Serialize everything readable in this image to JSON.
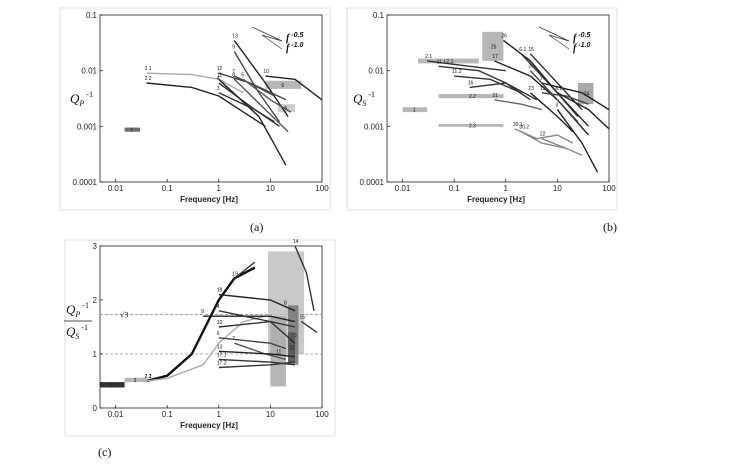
{
  "chart_data": [
    {
      "panel": "(a)",
      "type": "line",
      "xlabel": "Frequency [Hz]",
      "ylabel": "Q_P^-1",
      "ylabel_parts": {
        "main": "Q",
        "sub": "P",
        "sup": "-1"
      },
      "xscale": "log",
      "yscale": "log",
      "xlim": [
        0.005,
        100
      ],
      "ylim": [
        0.0001,
        0.1
      ],
      "x_ticks": [
        "0.01",
        "0.1",
        "1",
        "10",
        "100"
      ],
      "y_ticks": [
        "0.0001",
        "0.001",
        "0.01",
        "0.1"
      ],
      "legend": [
        {
          "label": "f",
          "exp": "-0.5"
        },
        {
          "label": "f",
          "exp": "-1.0"
        }
      ],
      "series": [
        {
          "name": "2.1",
          "color": "#aaaaaa",
          "x": [
            0.04,
            0.3,
            1,
            3
          ],
          "y": [
            0.009,
            0.0085,
            0.007,
            0.004
          ]
        },
        {
          "name": "2.2",
          "color": "#222222",
          "x": [
            0.04,
            0.3,
            1,
            3,
            8
          ],
          "y": [
            0.006,
            0.005,
            0.0035,
            0.0018,
            0.001
          ]
        },
        {
          "name": "13",
          "color": "#222222",
          "x": [
            2,
            8,
            22
          ],
          "y": [
            0.035,
            0.006,
            0.0015
          ]
        },
        {
          "name": "9",
          "color": "#444444",
          "x": [
            2,
            6,
            15
          ],
          "y": [
            0.022,
            0.004,
            0.0012
          ]
        },
        {
          "name": "12",
          "color": "#444444",
          "x": [
            1,
            4,
            12
          ],
          "y": [
            0.009,
            0.006,
            0.0035
          ]
        },
        {
          "name": "3",
          "color": "#333333",
          "x": [
            1,
            5,
            12
          ],
          "y": [
            0.004,
            0.002,
            0.0012
          ]
        },
        {
          "name": "4",
          "color": "#333333",
          "x": [
            1,
            5,
            15
          ],
          "y": [
            0.006,
            0.002,
            0.001
          ]
        },
        {
          "name": "11",
          "color": "#222222",
          "x": [
            1,
            6,
            20
          ],
          "y": [
            0.007,
            0.0015,
            0.0002
          ]
        },
        {
          "name": "10",
          "color": "#222222",
          "x": [
            8,
            30,
            100
          ],
          "y": [
            0.008,
            0.007,
            0.003
          ]
        },
        {
          "name": "7",
          "color": "#444444",
          "x": [
            2,
            8,
            20
          ],
          "y": [
            0.008,
            0.0045,
            0.003
          ]
        },
        {
          "name": "8",
          "color": "#555555",
          "x": [
            2,
            8,
            22
          ],
          "y": [
            0.007,
            0.002,
            0.0008
          ]
        },
        {
          "name": "5",
          "color": "#555555",
          "x": [
            3,
            10,
            25
          ],
          "y": [
            0.007,
            0.003,
            0.0018
          ]
        }
      ],
      "boxes": [
        {
          "name": "1",
          "x": [
            0.015,
            0.03
          ],
          "y": [
            0.0008,
            0.00095
          ],
          "color": "#555555"
        },
        {
          "name": "6",
          "x": [
            8,
            40
          ],
          "y": [
            0.0047,
            0.0066
          ],
          "color": "#aaaaaa"
        },
        {
          "name": "5",
          "x": [
            14,
            30
          ],
          "y": [
            0.0018,
            0.0025
          ],
          "color": "#c4c4c4"
        }
      ]
    },
    {
      "panel": "(b)",
      "type": "line",
      "xlabel": "Frequency [Hz]",
      "ylabel": "Q_S^-1",
      "ylabel_parts": {
        "main": "Q",
        "sub": "S",
        "sup": "-1"
      },
      "xscale": "log",
      "yscale": "log",
      "xlim": [
        0.005,
        100
      ],
      "ylim": [
        0.0001,
        0.1
      ],
      "x_ticks": [
        "0.01",
        "0.1",
        "1",
        "10",
        "100"
      ],
      "y_ticks": [
        "0.0001",
        "0.001",
        "0.01",
        "0.1"
      ],
      "legend": [
        {
          "label": "f",
          "exp": "-0.5"
        },
        {
          "label": "f",
          "exp": "-1.0"
        }
      ],
      "series": [
        {
          "name": "2.1",
          "color": "#333333",
          "x": [
            0.03,
            0.2,
            1
          ],
          "y": [
            0.015,
            0.012,
            0.01
          ]
        },
        {
          "name": "11.1",
          "color": "#333333",
          "x": [
            0.05,
            0.3,
            1,
            3
          ],
          "y": [
            0.012,
            0.01,
            0.006,
            0.003
          ]
        },
        {
          "name": "11.2",
          "color": "#333333",
          "x": [
            0.1,
            0.5,
            2
          ],
          "y": [
            0.008,
            0.007,
            0.004
          ]
        },
        {
          "name": "16",
          "color": "#333333",
          "x": [
            0.2,
            1,
            4
          ],
          "y": [
            0.005,
            0.006,
            0.003
          ]
        },
        {
          "name": "26",
          "color": "#222222",
          "x": [
            0.9,
            3,
            10,
            40
          ],
          "y": [
            0.035,
            0.015,
            0.004,
            0.001
          ]
        },
        {
          "name": "17",
          "color": "#222222",
          "x": [
            0.6,
            3,
            10,
            40
          ],
          "y": [
            0.015,
            0.008,
            0.003,
            0.0007
          ]
        },
        {
          "name": "15",
          "color": "#333333",
          "x": [
            3,
            10,
            30
          ],
          "y": [
            0.02,
            0.006,
            0.002
          ]
        },
        {
          "name": "6.1",
          "color": "#333333",
          "x": [
            2,
            8,
            25
          ],
          "y": [
            0.02,
            0.005,
            0.0015
          ]
        },
        {
          "name": "21",
          "color": "#666666",
          "x": [
            0.6,
            2,
            5
          ],
          "y": [
            0.003,
            0.0025,
            0.002
          ]
        },
        {
          "name": "23",
          "color": "#222222",
          "x": [
            3,
            10,
            20
          ],
          "y": [
            0.004,
            0.0015,
            0.0008
          ]
        },
        {
          "name": "20",
          "color": "#444444",
          "x": [
            3,
            10,
            25
          ],
          "y": [
            0.01,
            0.003,
            0.0012
          ]
        },
        {
          "name": "13",
          "color": "#444444",
          "x": [
            5,
            15,
            40
          ],
          "y": [
            0.004,
            0.0035,
            0.0025
          ]
        },
        {
          "name": "7",
          "color": "#222222",
          "x": [
            5,
            30,
            100
          ],
          "y": [
            0.006,
            0.004,
            0.002
          ]
        },
        {
          "name": "6.2",
          "color": "#222222",
          "x": [
            10,
            40,
            100
          ],
          "y": [
            0.004,
            0.002,
            0.0009
          ]
        },
        {
          "name": "30.1",
          "color": "#888888",
          "x": [
            1.5,
            4,
            10,
            20
          ],
          "y": [
            0.0009,
            0.0006,
            0.0007,
            0.0005
          ]
        },
        {
          "name": "30.2",
          "color": "#888888",
          "x": [
            2,
            5,
            15
          ],
          "y": [
            0.0008,
            0.0005,
            0.0004
          ]
        },
        {
          "name": "22",
          "color": "#888888",
          "x": [
            5,
            15,
            30
          ],
          "y": [
            0.0006,
            0.0004,
            0.0003
          ]
        },
        {
          "name": "3",
          "color": "#222222",
          "x": [
            10,
            30,
            60
          ],
          "y": [
            0.002,
            0.0005,
            0.00015
          ]
        }
      ],
      "boxes": [
        {
          "name": "2.1",
          "x": [
            0.02,
            0.3
          ],
          "y": [
            0.0135,
            0.0165
          ],
          "color": "#aaaaaa"
        },
        {
          "name": "25",
          "x": [
            0.35,
            0.9
          ],
          "y": [
            0.015,
            0.05
          ],
          "color": "#aaaaaa"
        },
        {
          "name": "2.2",
          "x": [
            0.05,
            0.9
          ],
          "y": [
            0.0032,
            0.0038
          ],
          "color": "#aaaaaa"
        },
        {
          "name": "1",
          "x": [
            0.01,
            0.03
          ],
          "y": [
            0.0018,
            0.0022
          ],
          "color": "#aaaaaa"
        },
        {
          "name": "2.3",
          "x": [
            0.05,
            0.9
          ],
          "y": [
            0.00098,
            0.0011
          ],
          "color": "#aaaaaa"
        },
        {
          "name": "24",
          "x": [
            25,
            50
          ],
          "y": [
            0.0025,
            0.006
          ],
          "color": "#999999"
        }
      ]
    },
    {
      "panel": "(c)",
      "type": "line",
      "xlabel": "Frequency [Hz]",
      "ylabel": "Q_P^-1 / Q_S^-1",
      "ylabel_parts": {
        "num_main": "Q",
        "num_sub": "P",
        "num_sup": "-1",
        "den_main": "Q",
        "den_sub": "S",
        "den_sup": "-1"
      },
      "xscale": "log",
      "yscale": "linear",
      "xlim": [
        0.005,
        100
      ],
      "ylim": [
        0,
        3
      ],
      "x_ticks": [
        "0.01",
        "0.1",
        "1",
        "10",
        "100"
      ],
      "y_ticks": [
        "0",
        "1",
        "2",
        "3"
      ],
      "reference_lines": [
        {
          "label": "√3",
          "y": 1.73
        },
        {
          "label": "",
          "y": 1.0
        }
      ],
      "series": [
        {
          "name": "2.2",
          "color": "#111111",
          "x": [
            0.04,
            0.1,
            0.3,
            1,
            2,
            5
          ],
          "y": [
            0.5,
            0.6,
            1.0,
            2.0,
            2.4,
            2.6
          ]
        },
        {
          "name": "2.1",
          "color": "#aaaaaa",
          "x": [
            0.04,
            0.1,
            0.5,
            1,
            3,
            8
          ],
          "y": [
            0.5,
            0.55,
            0.8,
            1.2,
            1.6,
            1.7
          ]
        },
        {
          "name": "19",
          "color": "#333333",
          "x": [
            2,
            5
          ],
          "y": [
            2.4,
            2.7
          ]
        },
        {
          "name": "18",
          "color": "#222222",
          "x": [
            1,
            10,
            30
          ],
          "y": [
            2.1,
            2.0,
            1.8
          ]
        },
        {
          "name": "9",
          "color": "#222222",
          "x": [
            0.5,
            10,
            30
          ],
          "y": [
            1.7,
            1.7,
            1.6
          ]
        },
        {
          "name": "4",
          "color": "#333333",
          "x": [
            1,
            10,
            30
          ],
          "y": [
            1.8,
            1.6,
            1.2
          ]
        },
        {
          "name": "10",
          "color": "#333333",
          "x": [
            1,
            10,
            30
          ],
          "y": [
            1.5,
            1.6,
            1.5
          ]
        },
        {
          "name": "6",
          "color": "#444444",
          "x": [
            1,
            10,
            20
          ],
          "y": [
            1.3,
            1.2,
            1.1
          ]
        },
        {
          "name": "7",
          "color": "#555555",
          "x": [
            2,
            8,
            20
          ],
          "y": [
            1.2,
            1.0,
            0.9
          ]
        },
        {
          "name": "13",
          "color": "#222222",
          "x": [
            1,
            10,
            30
          ],
          "y": [
            1.05,
            1.0,
            0.95
          ]
        },
        {
          "name": "17.1",
          "color": "#333333",
          "x": [
            1,
            10,
            30
          ],
          "y": [
            0.9,
            0.85,
            0.8
          ]
        },
        {
          "name": "17.2",
          "color": "#333333",
          "x": [
            1,
            10,
            30
          ],
          "y": [
            0.75,
            0.8,
            0.85
          ]
        },
        {
          "name": "14",
          "color": "#333333",
          "x": [
            30,
            50,
            70
          ],
          "y": [
            3.0,
            2.5,
            1.8
          ]
        },
        {
          "name": "15",
          "color": "#333333",
          "x": [
            40,
            80
          ],
          "y": [
            1.6,
            1.4
          ]
        }
      ],
      "boxes": [
        {
          "name": "1",
          "x": [
            0.005,
            0.015
          ],
          "y": [
            0.38,
            0.48
          ],
          "color": "#111111"
        },
        {
          "name": "3",
          "x": [
            0.015,
            0.04
          ],
          "y": [
            0.48,
            0.56
          ],
          "color": "#aaaaaa"
        },
        {
          "name": "8",
          "x": [
            9,
            45
          ],
          "y": [
            1.0,
            2.9
          ],
          "color": "#c0c0c0"
        },
        {
          "name": "11",
          "x": [
            10,
            20
          ],
          "y": [
            0.4,
            1.7
          ],
          "color": "#aaaaaa"
        },
        {
          "name": "16",
          "x": [
            22,
            35
          ],
          "y": [
            0.8,
            1.9
          ],
          "color": "#777777"
        },
        {
          "name": "12",
          "x": [
            22,
            30
          ],
          "y": [
            0.85,
            1.4
          ],
          "color": "#555555"
        }
      ]
    }
  ]
}
